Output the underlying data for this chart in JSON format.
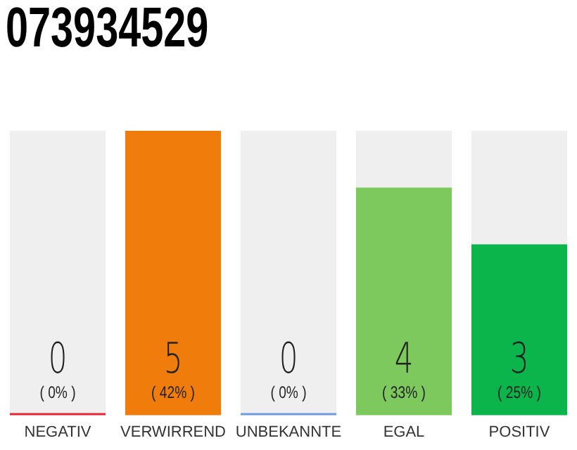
{
  "chart_data": {
    "type": "bar",
    "title": "073934529",
    "categories": [
      "NEGATIV",
      "VERWIRREND",
      "UNBEKANNTE",
      "EGAL",
      "POSITIV"
    ],
    "values": [
      0,
      5,
      0,
      4,
      3
    ],
    "colors": [
      "#e8233a",
      "#f07d0b",
      "#6f9be0",
      "#7dc95e",
      "#0bb54b"
    ],
    "value_labels": [
      "0",
      "5",
      "0",
      "4",
      "3"
    ],
    "annotations": [
      "( 0% )",
      "( 42% )",
      "( 0% )",
      "( 33% )",
      "( 25% )"
    ],
    "grid": false,
    "legend": false
  }
}
